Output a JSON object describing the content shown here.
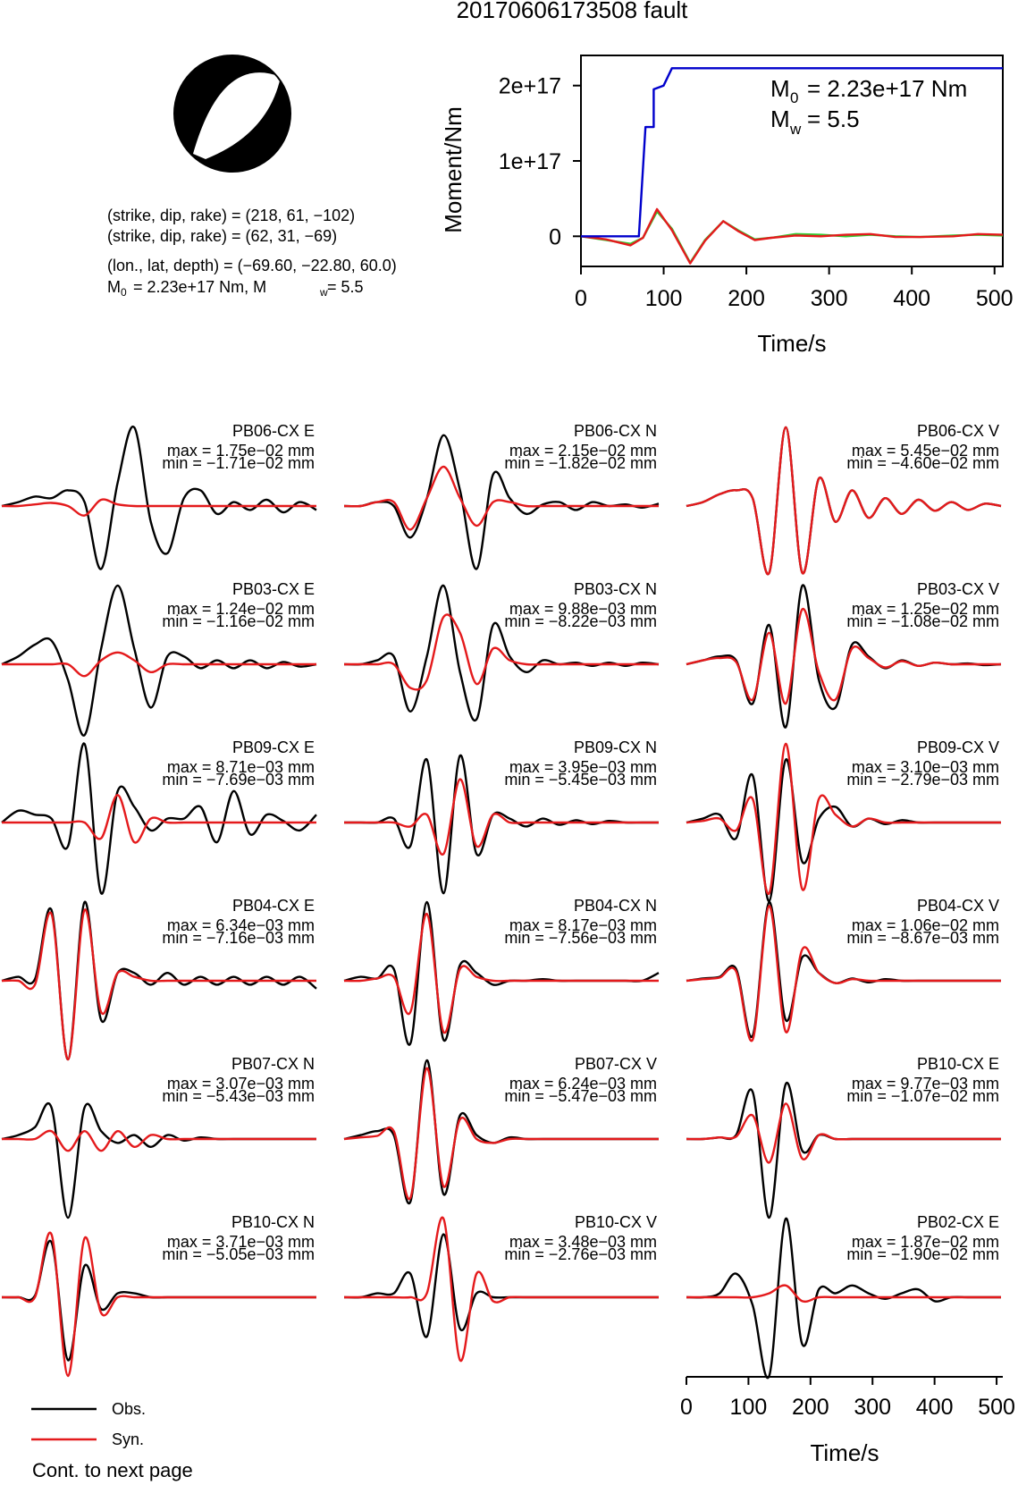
{
  "title": "20170606173508 fault",
  "info": {
    "strike1": "(strike, dip, rake) = (218, 61, −102)",
    "strike2": "(strike, dip, rake) = (62, 31, −69)",
    "location": "(lon., lat, depth) = (−69.60, −22.80, 60.0)",
    "m0_text": "= 2.23e+17 Nm, M",
    "mw_text": " = 5.5"
  },
  "legend": {
    "obs": "Obs.",
    "syn": "Syn."
  },
  "footer": "Cont. to next page",
  "colors": {
    "obs": "#000000",
    "syn": "#e41a1c",
    "moment": "#0000cc",
    "green": "#33cc33"
  },
  "chart_data": [
    {
      "type": "line",
      "name": "moment-function",
      "xlabel": "Time/s",
      "ylabel": "Moment/Nm",
      "xlim": [
        0,
        510
      ],
      "ylim": [
        -4e+16,
        2.4e+17
      ],
      "x_ticks": [
        0,
        100,
        200,
        300,
        400,
        500
      ],
      "y_ticks": [
        0,
        1e+17,
        2e+17
      ],
      "y_tick_labels": [
        "0",
        "1e+17",
        "2e+17"
      ],
      "annotation_m0": "= 2.23e+17 Nm",
      "annotation_mw": "= 5.5",
      "series": [
        {
          "color": "#0000cc",
          "x": [
            0,
            70,
            78,
            78,
            88,
            88,
            100,
            110,
            510
          ],
          "y": [
            0,
            0,
            1.45e+17,
            1.45e+17,
            1.45e+17,
            1.95e+17,
            2e+17,
            2.23e+17,
            2.23e+17
          ]
        },
        {
          "color": "#33cc33",
          "x": [
            0,
            30,
            60,
            75,
            92,
            110,
            132,
            150,
            172,
            190,
            210,
            230,
            260,
            290,
            320,
            350,
            380,
            410,
            450,
            480,
            510
          ],
          "y": [
            0,
            -5000000000000000.0,
            -1e+16,
            -2000000000000000.0,
            3.3e+16,
            1e+16,
            -3.5e+16,
            -5000000000000000.0,
            2e+16,
            8000000000000000.0,
            -4000000000000000.0,
            -2000000000000000.0,
            3000000000000000.0,
            2000000000000000.0,
            0.0,
            2000000000000000.0,
            0.0,
            -1000000000000000.0,
            1000000000000000.0,
            2000000000000000.0,
            1000000000000000.0
          ]
        },
        {
          "color": "#e41a1c",
          "x": [
            0,
            30,
            60,
            75,
            92,
            110,
            132,
            150,
            172,
            190,
            210,
            230,
            260,
            290,
            320,
            350,
            380,
            410,
            450,
            480,
            510
          ],
          "y": [
            0,
            -4000000000000000.0,
            -1.2e+16,
            -2000000000000000.0,
            3.6e+16,
            8000000000000000.0,
            -3.6e+16,
            -6000000000000000.0,
            2e+16,
            7000000000000000.0,
            -5000000000000000.0,
            -2000000000000000.0,
            1000000000000000.0,
            0.0,
            2000000000000000.0,
            3000000000000000.0,
            -1000000000000000.0,
            -1000000000000000.0,
            0.0,
            3000000000000000.0,
            2000000000000000.0
          ]
        }
      ]
    },
    {
      "type": "line",
      "name": "waveforms",
      "xlabel": "Time/s",
      "xlim": [
        0,
        510
      ],
      "x_ticks": [
        0,
        100,
        200,
        300,
        400,
        500
      ],
      "panels": [
        {
          "station": "PB06-CX E",
          "max": "max = 1.75e−02 mm",
          "min": "min = −1.71e−02 mm",
          "obs": [
            0,
            0.05,
            0.12,
            0.1,
            0.2,
            0.05,
            -0.8,
            0.3,
            1.0,
            -0.2,
            -0.6,
            0.1,
            0.2,
            -0.1,
            0.05,
            -0.05,
            0.08,
            -0.08,
            0.05,
            -0.05
          ],
          "syn": [
            0,
            0,
            0.02,
            0.04,
            0,
            -0.12,
            0.08,
            0.02,
            0,
            0,
            0,
            0,
            0,
            0,
            0,
            0,
            0,
            0,
            0,
            0
          ]
        },
        {
          "station": "PB06-CX N",
          "max": "max = 2.15e−02 mm",
          "min": "min = −1.82e−02 mm",
          "obs": [
            0,
            0,
            0.05,
            0.0,
            -0.4,
            0.1,
            0.9,
            0.2,
            -0.8,
            0.4,
            0.1,
            -0.1,
            0.02,
            0.05,
            -0.05,
            0.05,
            0,
            0.02,
            -0.02,
            0.03
          ],
          "syn": [
            0,
            0,
            0.05,
            0.05,
            -0.3,
            0.1,
            0.5,
            0.1,
            -0.25,
            0.05,
            0.05,
            0,
            0,
            0,
            0,
            0,
            0,
            0,
            0,
            0
          ]
        },
        {
          "station": "PB06-CX V",
          "max": "max = 5.45e−02 mm",
          "min": "min = −4.60e−02 mm",
          "obs": [
            0,
            0.05,
            0.15,
            0.2,
            0.1,
            -0.85,
            1.0,
            -0.85,
            0.35,
            -0.2,
            0.2,
            -0.15,
            0.1,
            -0.1,
            0.08,
            -0.06,
            0.05,
            -0.05,
            0.03,
            0
          ],
          "syn": [
            0,
            0.05,
            0.15,
            0.2,
            0.1,
            -0.85,
            1.0,
            -0.85,
            0.35,
            -0.2,
            0.2,
            -0.15,
            0.1,
            -0.1,
            0.08,
            -0.06,
            0.05,
            -0.05,
            0.03,
            0
          ]
        },
        {
          "station": "PB03-CX E",
          "max": "max = 1.24e−02 mm",
          "min": "min = −1.16e−02 mm",
          "obs": [
            0,
            0.1,
            0.25,
            0.3,
            -0.2,
            -0.9,
            0.2,
            1.0,
            0.2,
            -0.55,
            0.1,
            0.1,
            -0.05,
            0.05,
            -0.05,
            0.05,
            -0.05,
            0.03,
            -0.03,
            0
          ],
          "syn": [
            0,
            0,
            0,
            0,
            0,
            -0.15,
            0.05,
            0.15,
            0.05,
            -0.1,
            0,
            0,
            0,
            0,
            0,
            0,
            0,
            0,
            0,
            0
          ]
        },
        {
          "station": "PB03-CX N",
          "max": "max = 9.88e−03 mm",
          "min": "min = −8.22e−03 mm",
          "obs": [
            0,
            0,
            0.05,
            0.1,
            -0.6,
            0.1,
            1.0,
            -0.1,
            -0.7,
            0.5,
            0.1,
            -0.1,
            0.05,
            0,
            0.02,
            -0.02,
            0.02,
            -0.02,
            0.02,
            0
          ],
          "syn": [
            0,
            0,
            0,
            0,
            -0.3,
            -0.2,
            0.6,
            0.4,
            -0.25,
            0.2,
            0.05,
            0,
            0,
            0,
            0,
            0,
            0,
            0,
            0,
            0
          ]
        },
        {
          "station": "PB03-CX V",
          "max": "max = 1.25e−02 mm",
          "min": "min = −1.08e−02 mm",
          "obs": [
            0,
            0.05,
            0.1,
            0.05,
            -0.5,
            0.5,
            -0.8,
            1.0,
            -0.2,
            -0.55,
            0.25,
            0.1,
            -0.05,
            0.05,
            -0.02,
            0.02,
            0,
            0.01,
            -0.01,
            0
          ],
          "syn": [
            0,
            0.05,
            0.08,
            0.03,
            -0.45,
            0.4,
            -0.5,
            0.7,
            -0.1,
            -0.45,
            0.2,
            0.08,
            -0.04,
            0.04,
            -0.02,
            0.02,
            0,
            0,
            0,
            0
          ]
        },
        {
          "station": "PB09-CX E",
          "max": "max = 8.71e−03 mm",
          "min": "min = −7.69e−03 mm",
          "obs": [
            0,
            0.15,
            0.1,
            0.05,
            -0.3,
            1.0,
            -0.9,
            0.4,
            0.2,
            -0.1,
            0.05,
            0.05,
            0.2,
            -0.25,
            0.4,
            -0.15,
            0.1,
            0.02,
            -0.1,
            0.1
          ],
          "syn": [
            0,
            0,
            0,
            0,
            0,
            0,
            -0.2,
            0.35,
            -0.25,
            0.05,
            0,
            0,
            0,
            0,
            0,
            0,
            0,
            0,
            0,
            0
          ]
        },
        {
          "station": "PB09-CX N",
          "max": "max = 3.95e−03 mm",
          "min": "min = −5.45e−03 mm",
          "obs": [
            0,
            0,
            0,
            0.05,
            -0.3,
            0.8,
            -0.9,
            0.85,
            -0.4,
            0.1,
            0.05,
            -0.05,
            0.05,
            -0.03,
            0.03,
            -0.02,
            0.02,
            0,
            0,
            0
          ],
          "syn": [
            0,
            0,
            0,
            0,
            -0.05,
            0.1,
            -0.4,
            0.55,
            -0.3,
            0.1,
            0,
            0,
            0,
            0,
            0,
            0,
            0,
            0,
            0,
            0
          ]
        },
        {
          "station": "PB09-CX V",
          "max": "max = 3.10e−03 mm",
          "min": "min = −2.79e−03 mm",
          "obs": [
            0,
            0.05,
            0.1,
            -0.2,
            0.6,
            -1.0,
            0.8,
            -0.5,
            0.05,
            0.2,
            -0.05,
            0.05,
            -0.02,
            0.03,
            0,
            0,
            0,
            0,
            0,
            0
          ],
          "syn": [
            0,
            0.02,
            0.05,
            -0.1,
            0.3,
            -0.9,
            1.0,
            -0.85,
            0.3,
            0.1,
            -0.05,
            0.05,
            0,
            0,
            0,
            0,
            0,
            0,
            0,
            0
          ]
        },
        {
          "station": "PB04-CX E",
          "max": "max = 6.34e−03 mm",
          "min": "min = −7.16e−03 mm",
          "obs": [
            0,
            0.05,
            0.02,
            0.9,
            -1.0,
            1.0,
            -0.5,
            0.1,
            0.1,
            -0.05,
            0.1,
            -0.05,
            0.05,
            -0.05,
            0.05,
            -0.05,
            0.05,
            -0.05,
            0.05,
            -0.1
          ],
          "syn": [
            0,
            0,
            -0.05,
            0.85,
            -1.0,
            0.9,
            -0.4,
            0.1,
            0.05,
            0,
            0,
            0,
            0,
            0,
            0,
            0,
            0,
            0,
            0,
            0
          ]
        },
        {
          "station": "PB04-CX N",
          "max": "max = 8.17e−03 mm",
          "min": "min = −7.56e−03 mm",
          "obs": [
            0,
            0.05,
            0.03,
            0.15,
            -0.8,
            1.0,
            -0.75,
            0.2,
            0.1,
            -0.05,
            0,
            0,
            0.02,
            0,
            0,
            0,
            0,
            0,
            0,
            0.1
          ],
          "syn": [
            0,
            0,
            0.03,
            0.05,
            -0.4,
            0.85,
            -0.65,
            0.15,
            0.05,
            0,
            0,
            0,
            0,
            0,
            0,
            0,
            0,
            0,
            0,
            0
          ]
        },
        {
          "station": "PB04-CX V",
          "max": "max = 1.06e−02 mm",
          "min": "min = −8.67e−03 mm",
          "obs": [
            0,
            0.03,
            0.05,
            0.15,
            -0.7,
            1.0,
            -0.5,
            0.3,
            0.1,
            -0.03,
            0.03,
            -0.02,
            0.02,
            0,
            0,
            0,
            0,
            0,
            0,
            0
          ],
          "syn": [
            0,
            0.02,
            0.04,
            0.12,
            -0.75,
            0.95,
            -0.65,
            0.4,
            0.1,
            -0.03,
            0.02,
            0,
            0,
            0,
            0,
            0,
            0,
            0,
            0,
            0
          ]
        },
        {
          "station": "PB07-CX N",
          "max": "max = 3.07e−03 mm",
          "min": "min = −5.43e−03 mm",
          "obs": [
            0,
            0.05,
            0.15,
            0.4,
            -1.0,
            0.4,
            0.1,
            -0.05,
            0.05,
            -0.1,
            0.05,
            -0.02,
            0.02,
            0,
            0,
            0,
            0,
            0,
            0,
            0
          ],
          "syn": [
            0,
            0,
            0,
            0.1,
            -0.15,
            0.1,
            -0.15,
            0.1,
            -0.1,
            0.05,
            0,
            0,
            0,
            0,
            0,
            0,
            0,
            0,
            0,
            0
          ]
        },
        {
          "station": "PB07-CX V",
          "max": "max = 6.24e−03 mm",
          "min": "min = −5.47e−03 mm",
          "obs": [
            0,
            0.05,
            0.1,
            0.05,
            -0.8,
            1.0,
            -0.7,
            0.3,
            0.05,
            -0.05,
            0.02,
            0,
            0,
            0,
            0,
            0,
            0,
            0,
            0,
            0
          ],
          "syn": [
            0,
            0.02,
            0.04,
            0.1,
            -0.75,
            0.9,
            -0.6,
            0.25,
            0,
            -0.05,
            0,
            0,
            0,
            0,
            0,
            0,
            0,
            0,
            0,
            0
          ]
        },
        {
          "station": "PB10-CX E",
          "max": "max = 9.77e−03 mm",
          "min": "min = −1.07e−02 mm",
          "obs": [
            0,
            0,
            0.02,
            0.05,
            0.6,
            -1.0,
            0.7,
            -0.15,
            0.05,
            0,
            0,
            0,
            0,
            0,
            0,
            0,
            0,
            0,
            0,
            0
          ],
          "syn": [
            0,
            0,
            0.02,
            0.03,
            0.3,
            -0.3,
            0.45,
            -0.25,
            0.05,
            0,
            0,
            0,
            0,
            0,
            0,
            0,
            0,
            0,
            0,
            0
          ]
        },
        {
          "station": "PB10-CX N",
          "max": "max = 3.71e−03 mm",
          "min": "min = −5.05e−03 mm",
          "obs": [
            0,
            0,
            0.02,
            0.7,
            -0.8,
            0.4,
            -0.15,
            0.05,
            0.05,
            0,
            0,
            0,
            0,
            0,
            0,
            0,
            0,
            0,
            0,
            0
          ],
          "syn": [
            0,
            0,
            0,
            0.8,
            -1.0,
            0.75,
            -0.2,
            0,
            0,
            0,
            0,
            0,
            0,
            0,
            0,
            0,
            0,
            0,
            0,
            0
          ]
        },
        {
          "station": "PB10-CX V",
          "max": "max = 3.48e−03 mm",
          "min": "min = −2.76e−03 mm",
          "obs": [
            0,
            0,
            0.05,
            0.05,
            0.3,
            -0.5,
            0.8,
            -0.4,
            0.05,
            0,
            0,
            0,
            0,
            0,
            0,
            0,
            0,
            0,
            0,
            0
          ],
          "syn": [
            0,
            0,
            0,
            0,
            0,
            0.05,
            1.0,
            -0.8,
            0.3,
            -0.05,
            0,
            0,
            0,
            0,
            0,
            0,
            0,
            0,
            0,
            0
          ]
        },
        {
          "station": "PB02-CX E",
          "max": "max = 1.87e−02 mm",
          "min": "min = −1.90e−02 mm",
          "obs": [
            0,
            0,
            0.05,
            0.3,
            -0.1,
            -1.0,
            1.0,
            -0.6,
            0.1,
            0.05,
            0.15,
            0.05,
            -0.02,
            0.05,
            0.1,
            -0.05,
            0,
            0,
            0,
            0
          ],
          "syn": [
            0,
            0,
            0,
            0,
            0,
            0.05,
            0.15,
            -0.05,
            0,
            0,
            0,
            0,
            0,
            0,
            0,
            0,
            0,
            0,
            0,
            0
          ]
        }
      ]
    }
  ]
}
